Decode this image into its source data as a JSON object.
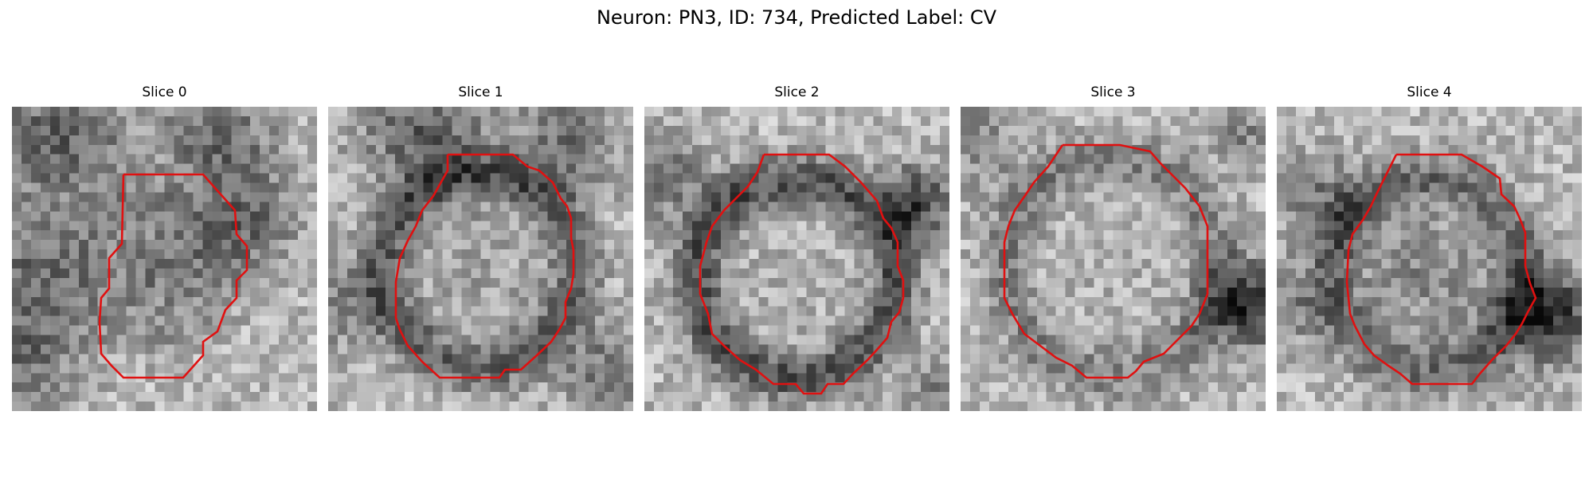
{
  "figure": {
    "title": "Neuron: PN3, ID: 734, Predicted Label: CV"
  },
  "panels": [
    {
      "title": "Slice 0",
      "seed": 11,
      "contour_color": "#e01010"
    },
    {
      "title": "Slice 1",
      "seed": 23,
      "contour_color": "#e01010"
    },
    {
      "title": "Slice 2",
      "seed": 37,
      "contour_color": "#e01010"
    },
    {
      "title": "Slice 3",
      "seed": 41,
      "contour_color": "#e01010"
    },
    {
      "title": "Slice 4",
      "seed": 59,
      "contour_color": "#e01010"
    }
  ]
}
